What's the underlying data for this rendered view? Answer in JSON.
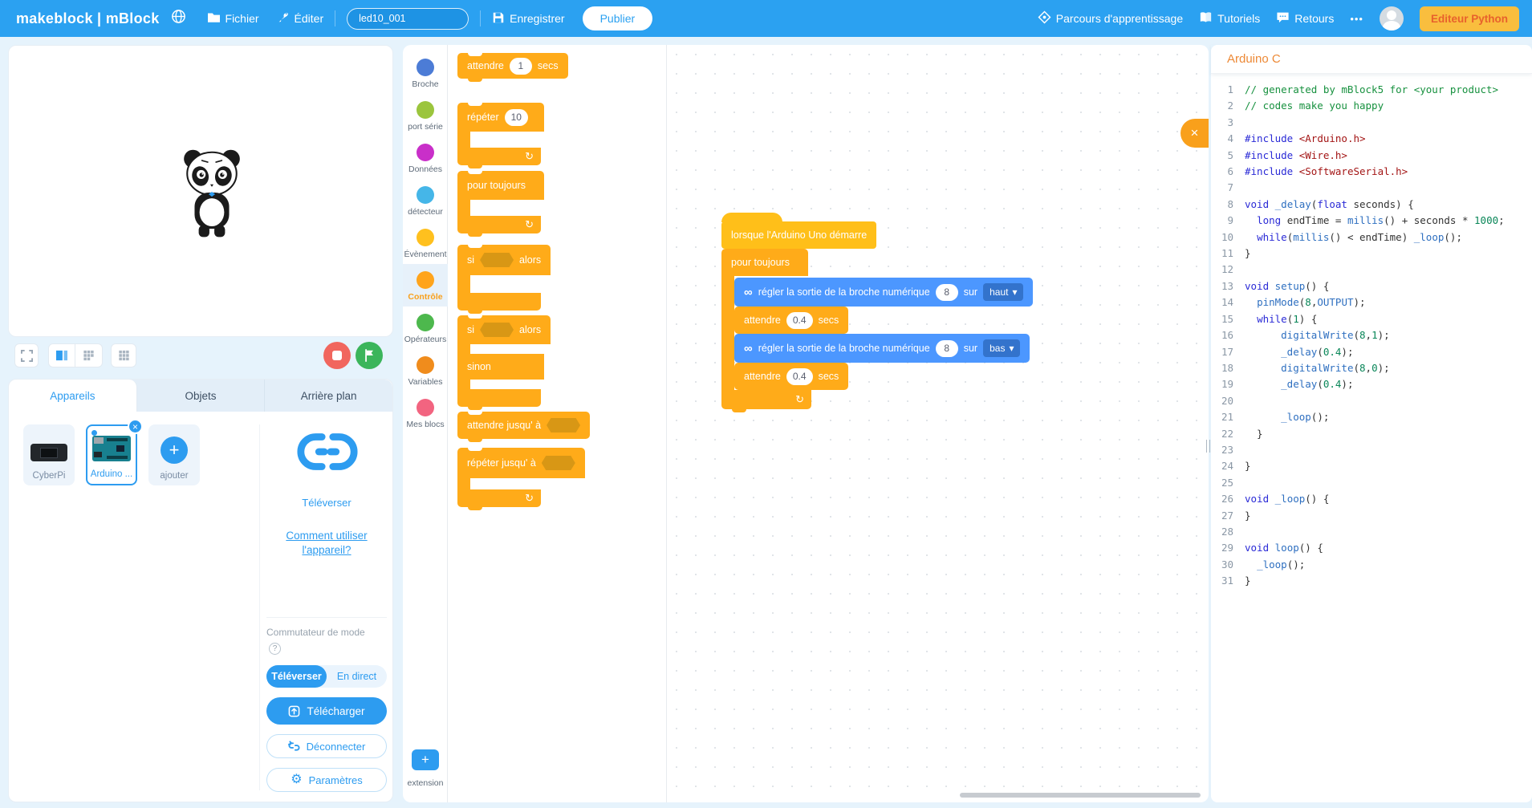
{
  "topbar": {
    "logo": "makeblock | mBlock",
    "file_menu": "Fichier",
    "edit_menu": "Éditer",
    "project_name": "led10_001",
    "save_label": "Enregistrer",
    "publish_label": "Publier",
    "learning_path": "Parcours d'apprentissage",
    "tutorials": "Tutoriels",
    "feedback": "Retours",
    "more": "•••",
    "python_editor": "Editeur Python"
  },
  "tabs": {
    "devices": "Appareils",
    "sprites": "Objets",
    "background": "Arrière plan"
  },
  "devices": {
    "cyberpi": "CyberPi",
    "arduino": "Arduino ...",
    "add": "ajouter"
  },
  "connection": {
    "upload_label": "Téléverser",
    "help_link_line1": "Comment utiliser",
    "help_link_line2": "l'appareil?",
    "mode_switch": "Commutateur de mode",
    "mode_upload": "Téléverser",
    "mode_live": "En direct",
    "download": "Télécharger",
    "disconnect": "Déconnecter",
    "settings": "Paramètres"
  },
  "categories": [
    {
      "label": "Broche",
      "color": "#4C7CD6",
      "selected": false
    },
    {
      "label": "port série",
      "color": "#9BC53D",
      "selected": false
    },
    {
      "label": "Données",
      "color": "#C92FC9",
      "selected": false
    },
    {
      "label": "détecteur",
      "color": "#45B6E8",
      "selected": false
    },
    {
      "label": "Évènement",
      "color": "#FFC01E",
      "selected": false
    },
    {
      "label": "Contrôle",
      "color": "#FFA41C",
      "selected": true
    },
    {
      "label": "Opérateurs",
      "color": "#4DB84D",
      "selected": false
    },
    {
      "label": "Variables",
      "color": "#F08C1C",
      "selected": false
    },
    {
      "label": "Mes blocs",
      "color": "#F26480",
      "selected": false
    }
  ],
  "extension": {
    "label": "extension"
  },
  "palette": {
    "wait_a": "attendre",
    "wait_val": "1",
    "wait_b": "secs",
    "repeat_a": "répéter",
    "repeat_val": "10",
    "forever": "pour toujours",
    "if_a": "si",
    "if_b": "alors",
    "else_label": "sinon",
    "wait_until": "attendre jusqu' à",
    "repeat_until": "répéter jusqu' à"
  },
  "script": {
    "hat": "lorsque l'Arduino Uno démarre",
    "forever": "pour toujours",
    "set_text": "régler la sortie de la broche numérique",
    "pin": "8",
    "sur": "sur",
    "high": "haut",
    "low": "bas",
    "wait_a": "attendre",
    "wait_val": "0.4",
    "wait_b": "secs"
  },
  "icons": {
    "infinity": "∞",
    "plus": "+",
    "close": "×",
    "caret_down": "▾",
    "loop_arrow": "↻",
    "help": "?",
    "gear": "⚙"
  },
  "colors": {
    "topbar_blue": "#2BA1F1",
    "accent_blue": "#2D9CF0",
    "control_orange": "#FFAB19",
    "event_yellow": "#FFBF19",
    "pin_block_blue": "#4C97FF",
    "python_btn_yellow": "#F9BE3E",
    "python_btn_text": "#E8612C",
    "code_title_orange": "#ED8936"
  },
  "code_panel": {
    "title": "Arduino C",
    "lines": [
      "// generated by mBlock5 for <your product>",
      "// codes make you happy",
      "",
      "#include <Arduino.h>",
      "#include <Wire.h>",
      "#include <SoftwareSerial.h>",
      "",
      "void _delay(float seconds) {",
      "  long endTime = millis() + seconds * 1000;",
      "  while(millis() < endTime) _loop();",
      "}",
      "",
      "void setup() {",
      "  pinMode(8,OUTPUT);",
      "  while(1) {",
      "      digitalWrite(8,1);",
      "      _delay(0.4);",
      "      digitalWrite(8,0);",
      "      _delay(0.4);",
      "",
      "      _loop();",
      "  }",
      "",
      "}",
      "",
      "void _loop() {",
      "}",
      "",
      "void loop() {",
      "  _loop();",
      "}"
    ]
  }
}
